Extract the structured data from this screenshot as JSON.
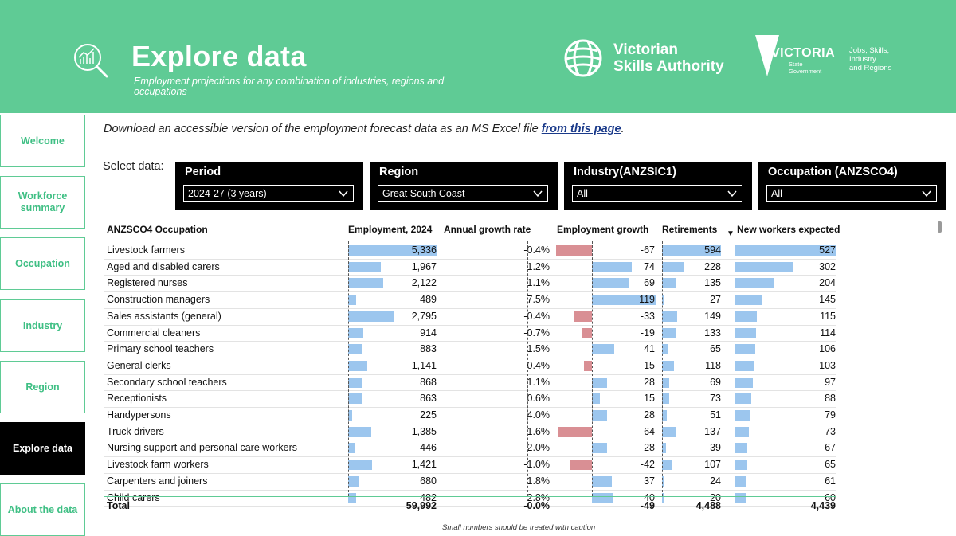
{
  "header": {
    "title": "Explore data",
    "subtitle": "Employment projections for any combination of industries, regions and occupations",
    "vsa_line1": "Victorian",
    "vsa_line2": "Skills Authority",
    "vic_word": "VICTORIA",
    "vic_sub1": "State",
    "vic_sub2": "Government",
    "dept_lines": [
      "Jobs, Skills,",
      "Industry",
      "and Regions"
    ],
    "colors": {
      "brand_green": "#5fcb95",
      "white": "#ffffff"
    }
  },
  "nav": [
    {
      "label": "Welcome",
      "active": false
    },
    {
      "label": "Workforce summary",
      "active": false
    },
    {
      "label": "Occupation",
      "active": false
    },
    {
      "label": "Industry",
      "active": false
    },
    {
      "label": "Region",
      "active": false
    },
    {
      "label": "Explore data",
      "active": true
    },
    {
      "label": "About the data",
      "active": false
    }
  ],
  "download": {
    "text": "Download an accessible version of the employment forecast data as an MS Excel file ",
    "link": "from this page",
    "end": "."
  },
  "select_label": "Select data:",
  "filters": [
    {
      "title": "Period",
      "value": "2024-27 (3 years)"
    },
    {
      "title": "Region",
      "value": "Great South Coast"
    },
    {
      "title": "Industry(ANZSIC1)",
      "value": "All"
    },
    {
      "title": "Occupation (ANZSCO4)",
      "value": "All"
    }
  ],
  "table": {
    "columns": [
      "ANZSCO4 Occupation",
      "Employment, 2024",
      "Annual growth rate",
      "Employment growth",
      "Retirements",
      "New workers expected"
    ],
    "sort_indicator": "▼",
    "rows": [
      {
        "occupation": "Livestock farmers",
        "employment": "5,336",
        "growth_rate": "-0.4%",
        "growth": "-67",
        "retirements": "594",
        "new_workers": "527"
      },
      {
        "occupation": "Aged and disabled carers",
        "employment": "1,967",
        "growth_rate": "1.2%",
        "growth": "74",
        "retirements": "228",
        "new_workers": "302"
      },
      {
        "occupation": "Registered nurses",
        "employment": "2,122",
        "growth_rate": "1.1%",
        "growth": "69",
        "retirements": "135",
        "new_workers": "204"
      },
      {
        "occupation": "Construction managers",
        "employment": "489",
        "growth_rate": "7.5%",
        "growth": "119",
        "retirements": "27",
        "new_workers": "145"
      },
      {
        "occupation": "Sales assistants (general)",
        "employment": "2,795",
        "growth_rate": "-0.4%",
        "growth": "-33",
        "retirements": "149",
        "new_workers": "115"
      },
      {
        "occupation": "Commercial cleaners",
        "employment": "914",
        "growth_rate": "-0.7%",
        "growth": "-19",
        "retirements": "133",
        "new_workers": "114"
      },
      {
        "occupation": "Primary school teachers",
        "employment": "883",
        "growth_rate": "1.5%",
        "growth": "41",
        "retirements": "65",
        "new_workers": "106"
      },
      {
        "occupation": "General clerks",
        "employment": "1,141",
        "growth_rate": "-0.4%",
        "growth": "-15",
        "retirements": "118",
        "new_workers": "103"
      },
      {
        "occupation": "Secondary school teachers",
        "employment": "868",
        "growth_rate": "1.1%",
        "growth": "28",
        "retirements": "69",
        "new_workers": "97"
      },
      {
        "occupation": "Receptionists",
        "employment": "863",
        "growth_rate": "0.6%",
        "growth": "15",
        "retirements": "73",
        "new_workers": "88"
      },
      {
        "occupation": "Handypersons",
        "employment": "225",
        "growth_rate": "4.0%",
        "growth": "28",
        "retirements": "51",
        "new_workers": "79"
      },
      {
        "occupation": "Truck drivers",
        "employment": "1,385",
        "growth_rate": "-1.6%",
        "growth": "-64",
        "retirements": "137",
        "new_workers": "73"
      },
      {
        "occupation": "Nursing support and personal care workers",
        "employment": "446",
        "growth_rate": "2.0%",
        "growth": "28",
        "retirements": "39",
        "new_workers": "67"
      },
      {
        "occupation": "Livestock farm workers",
        "employment": "1,421",
        "growth_rate": "-1.0%",
        "growth": "-42",
        "retirements": "107",
        "new_workers": "65"
      },
      {
        "occupation": "Carpenters and joiners",
        "employment": "680",
        "growth_rate": "1.8%",
        "growth": "37",
        "retirements": "24",
        "new_workers": "61"
      },
      {
        "occupation": "Child carers",
        "employment": "482",
        "growth_rate": "2.8%",
        "growth": "40",
        "retirements": "20",
        "new_workers": "60"
      }
    ],
    "total": {
      "label": "Total",
      "employment": "59,992",
      "growth_rate": "-0.0%",
      "growth": "-49",
      "retirements": "4,488",
      "new_workers": "4,439"
    },
    "caution": "Small numbers should be treated with caution",
    "bar_colors": {
      "positive": "#9cc6ee",
      "negative": "#d98f94"
    }
  }
}
